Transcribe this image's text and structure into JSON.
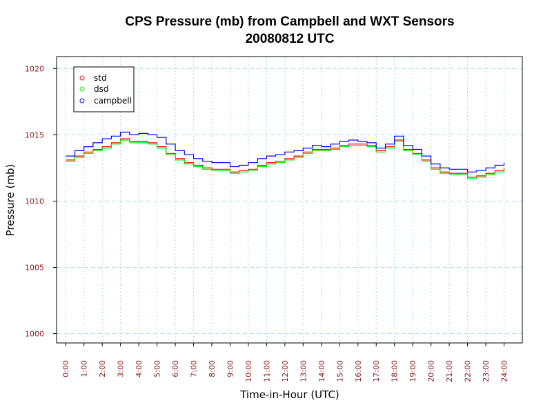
{
  "chart_data": {
    "type": "line",
    "title": "CPS Pressure (mb) from Campbell and WXT Sensors",
    "subtitle": "20080812  UTC",
    "xlabel": "Time-in-Hour (UTC)",
    "ylabel": "Pressure (mb)",
    "xlim": [
      -0.5,
      25
    ],
    "ylim": [
      999.3,
      1020.9
    ],
    "grid": true,
    "tick_color": "#8b1a1a",
    "grid_color": "#a8dcea",
    "legend_position": "top-left",
    "x_ticks": [
      0,
      1,
      2,
      3,
      4,
      5,
      6,
      7,
      8,
      9,
      10,
      11,
      12,
      13,
      14,
      15,
      16,
      17,
      18,
      19,
      20,
      21,
      22,
      23,
      24
    ],
    "x_tick_labels": [
      "0:00",
      "1:00",
      "2:00",
      "3:00",
      "4:00",
      "5:00",
      "6:00",
      "7:00",
      "8:00",
      "9:00",
      "10:00",
      "11:00",
      "12:00",
      "13:00",
      "14:00",
      "15:00",
      "16:00",
      "17:00",
      "18:00",
      "19:00",
      "20:00",
      "21:00",
      "22:00",
      "23:00",
      "24:00"
    ],
    "y_ticks": [
      1000,
      1005,
      1010,
      1015,
      1020
    ],
    "y_tick_labels": [
      "1000",
      "1005",
      "1010",
      "1015",
      "1020"
    ],
    "x": [
      0,
      0.5,
      1,
      1.5,
      2,
      2.5,
      3,
      3.5,
      4,
      4.5,
      5,
      5.5,
      6,
      6.5,
      7,
      7.5,
      8,
      8.5,
      9,
      9.5,
      10,
      10.5,
      11,
      11.5,
      12,
      12.5,
      13,
      13.5,
      14,
      14.5,
      15,
      15.5,
      16,
      16.5,
      17,
      17.5,
      18,
      18.5,
      19,
      19.5,
      20,
      20.5,
      21,
      21.5,
      22,
      22.5,
      23,
      23.5,
      24
    ],
    "series": [
      {
        "name": "std",
        "color": "#ff0000",
        "values": [
          1013.1,
          1013.4,
          1013.7,
          1013.9,
          1014.1,
          1014.4,
          1014.7,
          1014.5,
          1014.5,
          1014.4,
          1014.1,
          1013.6,
          1013.2,
          1012.9,
          1012.7,
          1012.5,
          1012.4,
          1012.4,
          1012.2,
          1012.3,
          1012.4,
          1012.7,
          1012.9,
          1013.0,
          1013.2,
          1013.4,
          1013.7,
          1013.9,
          1013.9,
          1014.0,
          1014.2,
          1014.3,
          1014.3,
          1014.2,
          1013.8,
          1014.1,
          1014.6,
          1013.9,
          1013.6,
          1013.1,
          1012.5,
          1012.2,
          1012.1,
          1012.1,
          1011.8,
          1011.9,
          1012.1,
          1012.3,
          1012.5
        ]
      },
      {
        "name": "dsd",
        "color": "#00ee00",
        "values": [
          1013.0,
          1013.3,
          1013.6,
          1013.8,
          1014.0,
          1014.3,
          1014.6,
          1014.4,
          1014.4,
          1014.3,
          1014.0,
          1013.5,
          1013.1,
          1012.8,
          1012.6,
          1012.4,
          1012.3,
          1012.3,
          1012.1,
          1012.2,
          1012.3,
          1012.6,
          1012.8,
          1012.9,
          1013.1,
          1013.3,
          1013.6,
          1013.8,
          1013.8,
          1013.9,
          1014.1,
          1014.2,
          1014.2,
          1014.1,
          1013.7,
          1014.0,
          1014.5,
          1013.8,
          1013.5,
          1013.0,
          1012.4,
          1012.1,
          1012.0,
          1012.0,
          1011.7,
          1011.8,
          1012.0,
          1012.2,
          1012.4
        ]
      },
      {
        "name": "campbell",
        "color": "#0000ff",
        "values": [
          1013.4,
          1013.8,
          1014.1,
          1014.4,
          1014.7,
          1014.9,
          1015.2,
          1015.0,
          1015.1,
          1015.0,
          1014.8,
          1014.3,
          1013.8,
          1013.5,
          1013.2,
          1013.0,
          1012.9,
          1012.9,
          1012.6,
          1012.7,
          1012.9,
          1013.2,
          1013.4,
          1013.5,
          1013.7,
          1013.8,
          1014.0,
          1014.2,
          1014.1,
          1014.3,
          1014.5,
          1014.6,
          1014.5,
          1014.4,
          1014.0,
          1014.3,
          1014.9,
          1014.2,
          1013.9,
          1013.4,
          1012.8,
          1012.5,
          1012.4,
          1012.4,
          1012.2,
          1012.3,
          1012.5,
          1012.7,
          1012.9
        ]
      }
    ]
  }
}
